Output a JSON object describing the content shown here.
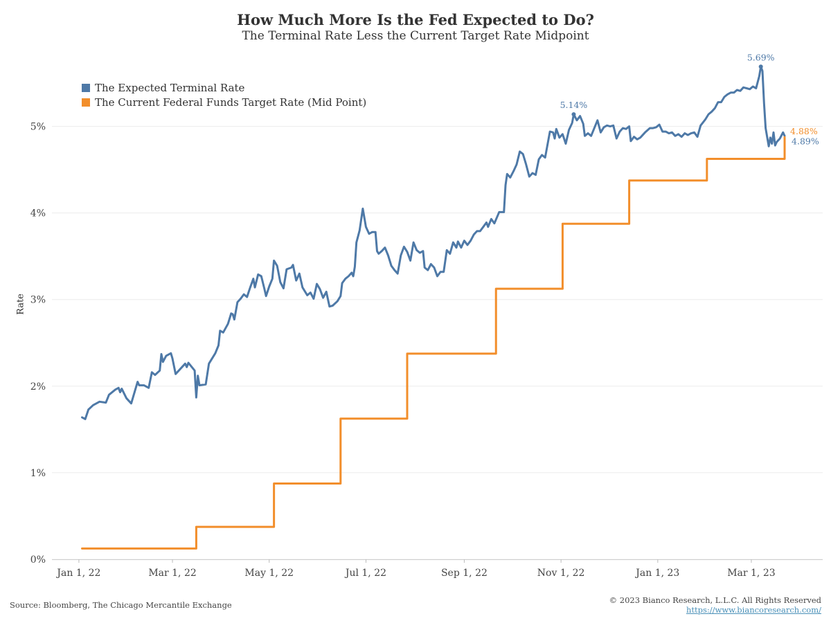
{
  "header": {
    "title": "How Much More Is the Fed Expected to Do?",
    "subtitle": "The Terminal Rate Less the Current Target Rate Midpoint"
  },
  "footer": {
    "source": "Source: Bloomberg, The Chicago Mercantile Exchange",
    "copyright": "© 2023 Bianco Research, L.L.C. All Rights Reserved",
    "url": "https://www.biancoresearch.com/"
  },
  "colors": {
    "terminal": "#4e79a7",
    "target": "#f28e2b",
    "grid": "#ebebeb"
  },
  "chart_data": {
    "type": "line",
    "ylabel": "Rate",
    "xlabel": "",
    "ylim": [
      0,
      5.9
    ],
    "xlim": [
      "2021-12-15",
      "2023-04-15"
    ],
    "x_ticks": [
      {
        "date": "2022-01-01",
        "label": "Jan 1, 22"
      },
      {
        "date": "2022-03-01",
        "label": "Mar 1, 22"
      },
      {
        "date": "2022-05-01",
        "label": "May 1, 22"
      },
      {
        "date": "2022-07-01",
        "label": "Jul 1, 22"
      },
      {
        "date": "2022-09-01",
        "label": "Sep 1, 22"
      },
      {
        "date": "2022-11-01",
        "label": "Nov 1, 22"
      },
      {
        "date": "2023-01-01",
        "label": "Jan 1, 23"
      },
      {
        "date": "2023-03-01",
        "label": "Mar 1, 23"
      }
    ],
    "y_ticks": [
      {
        "value": 0,
        "label": "0%"
      },
      {
        "value": 1,
        "label": "1%"
      },
      {
        "value": 2,
        "label": "2%"
      },
      {
        "value": 3,
        "label": "3%"
      },
      {
        "value": 4,
        "label": "4%"
      },
      {
        "value": 5,
        "label": "5%"
      }
    ],
    "legend_position": "top-left",
    "grid": true,
    "series": [
      {
        "name": "The Expected Terminal Rate",
        "color": "#4e79a7",
        "points": [
          [
            "2022-01-03",
            1.64
          ],
          [
            "2022-01-05",
            1.62
          ],
          [
            "2022-01-07",
            1.73
          ],
          [
            "2022-01-10",
            1.78
          ],
          [
            "2022-01-14",
            1.82
          ],
          [
            "2022-01-18",
            1.81
          ],
          [
            "2022-01-20",
            1.9
          ],
          [
            "2022-01-24",
            1.96
          ],
          [
            "2022-01-26",
            1.98
          ],
          [
            "2022-01-27",
            1.93
          ],
          [
            "2022-01-28",
            1.97
          ],
          [
            "2022-01-31",
            1.86
          ],
          [
            "2022-02-03",
            1.8
          ],
          [
            "2022-02-07",
            2.05
          ],
          [
            "2022-02-08",
            2.01
          ],
          [
            "2022-02-11",
            2.01
          ],
          [
            "2022-02-14",
            1.98
          ],
          [
            "2022-02-16",
            2.16
          ],
          [
            "2022-02-18",
            2.13
          ],
          [
            "2022-02-21",
            2.18
          ],
          [
            "2022-02-22",
            2.37
          ],
          [
            "2022-02-23",
            2.28
          ],
          [
            "2022-02-25",
            2.35
          ],
          [
            "2022-02-28",
            2.38
          ],
          [
            "2022-03-01",
            2.32
          ],
          [
            "2022-03-03",
            2.14
          ],
          [
            "2022-03-06",
            2.2
          ],
          [
            "2022-03-09",
            2.26
          ],
          [
            "2022-03-10",
            2.22
          ],
          [
            "2022-03-11",
            2.27
          ],
          [
            "2022-03-15",
            2.18
          ],
          [
            "2022-03-16",
            1.87
          ],
          [
            "2022-03-17",
            2.12
          ],
          [
            "2022-03-18",
            2.01
          ],
          [
            "2022-03-22",
            2.02
          ],
          [
            "2022-03-24",
            2.26
          ],
          [
            "2022-03-28",
            2.38
          ],
          [
            "2022-03-30",
            2.47
          ],
          [
            "2022-03-31",
            2.64
          ],
          [
            "2022-04-02",
            2.62
          ],
          [
            "2022-04-05",
            2.72
          ],
          [
            "2022-04-07",
            2.84
          ],
          [
            "2022-04-08",
            2.83
          ],
          [
            "2022-04-09",
            2.77
          ],
          [
            "2022-04-11",
            2.97
          ],
          [
            "2022-04-13",
            3.01
          ],
          [
            "2022-04-15",
            3.06
          ],
          [
            "2022-04-17",
            3.03
          ],
          [
            "2022-04-19",
            3.14
          ],
          [
            "2022-04-21",
            3.24
          ],
          [
            "2022-04-22",
            3.14
          ],
          [
            "2022-04-24",
            3.29
          ],
          [
            "2022-04-26",
            3.27
          ],
          [
            "2022-04-28",
            3.12
          ],
          [
            "2022-04-29",
            3.04
          ],
          [
            "2022-05-01",
            3.15
          ],
          [
            "2022-05-03",
            3.24
          ],
          [
            "2022-05-04",
            3.45
          ],
          [
            "2022-05-06",
            3.39
          ],
          [
            "2022-05-08",
            3.2
          ],
          [
            "2022-05-10",
            3.13
          ],
          [
            "2022-05-12",
            3.35
          ],
          [
            "2022-05-15",
            3.37
          ],
          [
            "2022-05-16",
            3.4
          ],
          [
            "2022-05-18",
            3.22
          ],
          [
            "2022-05-20",
            3.3
          ],
          [
            "2022-05-22",
            3.14
          ],
          [
            "2022-05-25",
            3.05
          ],
          [
            "2022-05-27",
            3.08
          ],
          [
            "2022-05-29",
            3.01
          ],
          [
            "2022-05-31",
            3.18
          ],
          [
            "2022-06-02",
            3.12
          ],
          [
            "2022-06-04",
            3.02
          ],
          [
            "2022-06-06",
            3.09
          ],
          [
            "2022-06-08",
            2.92
          ],
          [
            "2022-06-10",
            2.93
          ],
          [
            "2022-06-13",
            2.98
          ],
          [
            "2022-06-15",
            3.04
          ],
          [
            "2022-06-16",
            3.19
          ],
          [
            "2022-06-18",
            3.24
          ],
          [
            "2022-06-20",
            3.27
          ],
          [
            "2022-06-22",
            3.31
          ],
          [
            "2022-06-23",
            3.27
          ],
          [
            "2022-06-24",
            3.38
          ],
          [
            "2022-06-25",
            3.66
          ],
          [
            "2022-06-27",
            3.8
          ],
          [
            "2022-06-29",
            4.05
          ],
          [
            "2022-07-01",
            3.84
          ],
          [
            "2022-07-03",
            3.76
          ],
          [
            "2022-07-05",
            3.78
          ],
          [
            "2022-07-07",
            3.78
          ],
          [
            "2022-07-08",
            3.56
          ],
          [
            "2022-07-09",
            3.53
          ],
          [
            "2022-07-11",
            3.56
          ],
          [
            "2022-07-13",
            3.6
          ],
          [
            "2022-07-15",
            3.51
          ],
          [
            "2022-07-17",
            3.39
          ],
          [
            "2022-07-19",
            3.34
          ],
          [
            "2022-07-21",
            3.3
          ],
          [
            "2022-07-23",
            3.51
          ],
          [
            "2022-07-25",
            3.61
          ],
          [
            "2022-07-27",
            3.55
          ],
          [
            "2022-07-29",
            3.45
          ],
          [
            "2022-07-31",
            3.66
          ],
          [
            "2022-08-02",
            3.57
          ],
          [
            "2022-08-04",
            3.54
          ],
          [
            "2022-08-06",
            3.56
          ],
          [
            "2022-08-07",
            3.37
          ],
          [
            "2022-08-09",
            3.34
          ],
          [
            "2022-08-11",
            3.41
          ],
          [
            "2022-08-13",
            3.37
          ],
          [
            "2022-08-15",
            3.27
          ],
          [
            "2022-08-17",
            3.32
          ],
          [
            "2022-08-19",
            3.32
          ],
          [
            "2022-08-21",
            3.57
          ],
          [
            "2022-08-23",
            3.53
          ],
          [
            "2022-08-25",
            3.66
          ],
          [
            "2022-08-27",
            3.6
          ],
          [
            "2022-08-28",
            3.67
          ],
          [
            "2022-08-30",
            3.6
          ],
          [
            "2022-09-01",
            3.68
          ],
          [
            "2022-09-03",
            3.63
          ],
          [
            "2022-09-05",
            3.68
          ],
          [
            "2022-09-07",
            3.75
          ],
          [
            "2022-09-09",
            3.79
          ],
          [
            "2022-09-11",
            3.79
          ],
          [
            "2022-09-13",
            3.84
          ],
          [
            "2022-09-15",
            3.89
          ],
          [
            "2022-09-16",
            3.84
          ],
          [
            "2022-09-18",
            3.93
          ],
          [
            "2022-09-20",
            3.88
          ],
          [
            "2022-09-23",
            4.01
          ],
          [
            "2022-09-26",
            4.01
          ],
          [
            "2022-09-27",
            4.32
          ],
          [
            "2022-09-28",
            4.45
          ],
          [
            "2022-09-30",
            4.41
          ],
          [
            "2022-10-02",
            4.48
          ],
          [
            "2022-10-04",
            4.56
          ],
          [
            "2022-10-06",
            4.71
          ],
          [
            "2022-10-08",
            4.68
          ],
          [
            "2022-10-10",
            4.56
          ],
          [
            "2022-10-12",
            4.42
          ],
          [
            "2022-10-14",
            4.46
          ],
          [
            "2022-10-16",
            4.44
          ],
          [
            "2022-10-18",
            4.62
          ],
          [
            "2022-10-20",
            4.67
          ],
          [
            "2022-10-22",
            4.64
          ],
          [
            "2022-10-25",
            4.94
          ],
          [
            "2022-10-27",
            4.93
          ],
          [
            "2022-10-28",
            4.86
          ],
          [
            "2022-10-29",
            4.97
          ],
          [
            "2022-10-31",
            4.87
          ],
          [
            "2022-11-02",
            4.91
          ],
          [
            "2022-11-04",
            4.8
          ],
          [
            "2022-11-06",
            4.96
          ],
          [
            "2022-11-08",
            5.04
          ],
          [
            "2022-11-09",
            5.14
          ],
          [
            "2022-11-11",
            5.07
          ],
          [
            "2022-11-13",
            5.12
          ],
          [
            "2022-11-15",
            5.03
          ],
          [
            "2022-11-16",
            4.89
          ],
          [
            "2022-11-18",
            4.92
          ],
          [
            "2022-11-20",
            4.89
          ],
          [
            "2022-11-22",
            4.98
          ],
          [
            "2022-11-24",
            5.07
          ],
          [
            "2022-11-26",
            4.93
          ],
          [
            "2022-11-28",
            4.99
          ],
          [
            "2022-11-30",
            5.01
          ],
          [
            "2022-12-02",
            5.0
          ],
          [
            "2022-12-04",
            5.01
          ],
          [
            "2022-12-06",
            4.86
          ],
          [
            "2022-12-08",
            4.94
          ],
          [
            "2022-12-10",
            4.98
          ],
          [
            "2022-12-12",
            4.97
          ],
          [
            "2022-12-14",
            5.0
          ],
          [
            "2022-12-15",
            4.83
          ],
          [
            "2022-12-17",
            4.88
          ],
          [
            "2022-12-19",
            4.85
          ],
          [
            "2022-12-21",
            4.87
          ],
          [
            "2022-12-24",
            4.93
          ],
          [
            "2022-12-27",
            4.98
          ],
          [
            "2022-12-29",
            4.98
          ],
          [
            "2022-12-31",
            4.99
          ],
          [
            "2023-01-02",
            5.02
          ],
          [
            "2023-01-04",
            4.94
          ],
          [
            "2023-01-06",
            4.94
          ],
          [
            "2023-01-08",
            4.92
          ],
          [
            "2023-01-10",
            4.93
          ],
          [
            "2023-01-12",
            4.89
          ],
          [
            "2023-01-14",
            4.91
          ],
          [
            "2023-01-16",
            4.88
          ],
          [
            "2023-01-18",
            4.92
          ],
          [
            "2023-01-20",
            4.9
          ],
          [
            "2023-01-22",
            4.92
          ],
          [
            "2023-01-24",
            4.93
          ],
          [
            "2023-01-26",
            4.88
          ],
          [
            "2023-01-28",
            5.01
          ],
          [
            "2023-01-31",
            5.08
          ],
          [
            "2023-02-02",
            5.14
          ],
          [
            "2023-02-04",
            5.17
          ],
          [
            "2023-02-06",
            5.21
          ],
          [
            "2023-02-08",
            5.28
          ],
          [
            "2023-02-10",
            5.28
          ],
          [
            "2023-02-12",
            5.34
          ],
          [
            "2023-02-14",
            5.37
          ],
          [
            "2023-02-16",
            5.39
          ],
          [
            "2023-02-18",
            5.39
          ],
          [
            "2023-02-20",
            5.42
          ],
          [
            "2023-02-22",
            5.41
          ],
          [
            "2023-02-24",
            5.45
          ],
          [
            "2023-02-26",
            5.44
          ],
          [
            "2023-02-28",
            5.43
          ],
          [
            "2023-03-02",
            5.46
          ],
          [
            "2023-03-04",
            5.44
          ],
          [
            "2023-03-06",
            5.58
          ],
          [
            "2023-03-07",
            5.69
          ],
          [
            "2023-03-08",
            5.64
          ],
          [
            "2023-03-09",
            5.27
          ],
          [
            "2023-03-10",
            4.98
          ],
          [
            "2023-03-12",
            4.77
          ],
          [
            "2023-03-13",
            4.87
          ],
          [
            "2023-03-14",
            4.8
          ],
          [
            "2023-03-15",
            4.93
          ],
          [
            "2023-03-16",
            4.78
          ],
          [
            "2023-03-17",
            4.82
          ],
          [
            "2023-03-19",
            4.86
          ],
          [
            "2023-03-21",
            4.93
          ],
          [
            "2023-03-22",
            4.89
          ]
        ],
        "annotations": [
          {
            "date": "2022-11-09",
            "value": 5.14,
            "label": "5.14%"
          },
          {
            "date": "2023-03-07",
            "value": 5.69,
            "label": "5.69%"
          },
          {
            "date": "2023-03-22",
            "value": 4.89,
            "label": "4.89%"
          }
        ]
      },
      {
        "name": "The Current Federal Funds Target Rate (Mid Point)",
        "color": "#f28e2b",
        "step": true,
        "end": "2023-03-22",
        "points": [
          [
            "2022-01-03",
            0.125
          ],
          [
            "2022-03-16",
            0.375
          ],
          [
            "2022-05-04",
            0.875
          ],
          [
            "2022-06-15",
            1.625
          ],
          [
            "2022-07-27",
            2.375
          ],
          [
            "2022-09-21",
            3.125
          ],
          [
            "2022-11-02",
            3.875
          ],
          [
            "2022-12-14",
            4.375
          ],
          [
            "2023-02-01",
            4.625
          ],
          [
            "2023-03-22",
            4.875
          ]
        ],
        "annotations": [
          {
            "date": "2023-03-22",
            "value": 4.875,
            "label": "4.88%"
          }
        ]
      }
    ]
  }
}
